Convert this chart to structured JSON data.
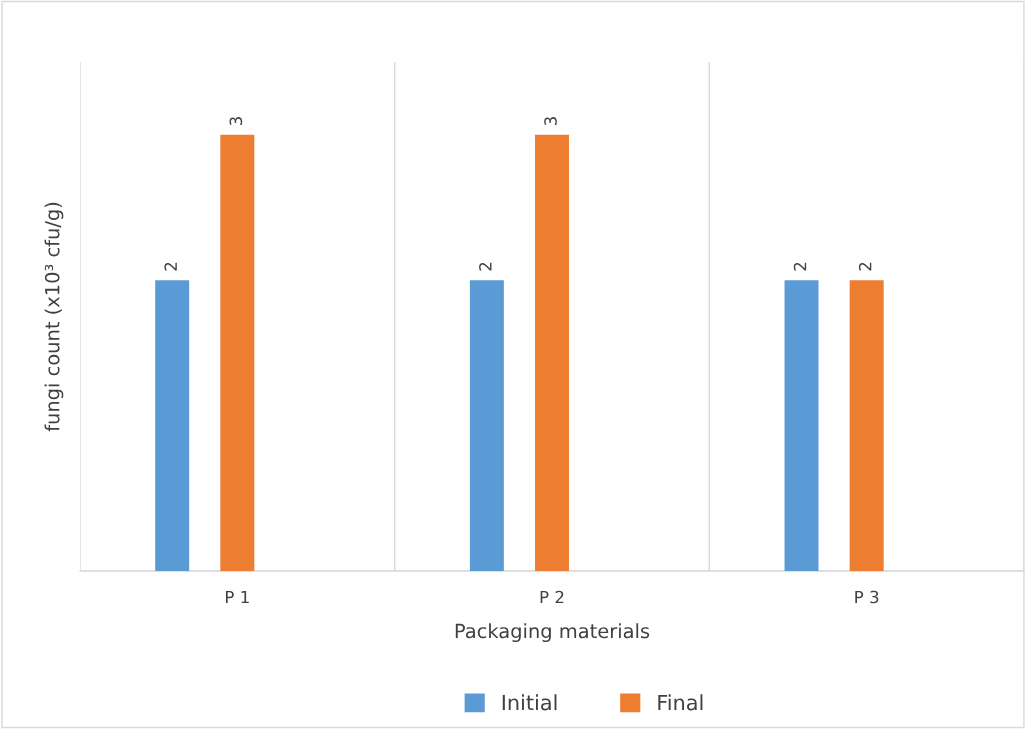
{
  "chart_data": {
    "type": "bar",
    "xlabel": "Packaging materials",
    "ylabel": "fungi count (x10³ cfu/g)",
    "categories": [
      "P 1",
      "P 2",
      "P 3"
    ],
    "series": [
      {
        "name": "Initial",
        "color": "#5b9bd5",
        "values": [
          2,
          2,
          2
        ]
      },
      {
        "name": "Final",
        "color": "#ed7d31",
        "values": [
          3,
          3,
          2
        ]
      }
    ],
    "ylim": [
      0,
      3.5
    ],
    "tick_labels": "x",
    "grid": "x",
    "data_labels": true,
    "legend": "bottom"
  }
}
